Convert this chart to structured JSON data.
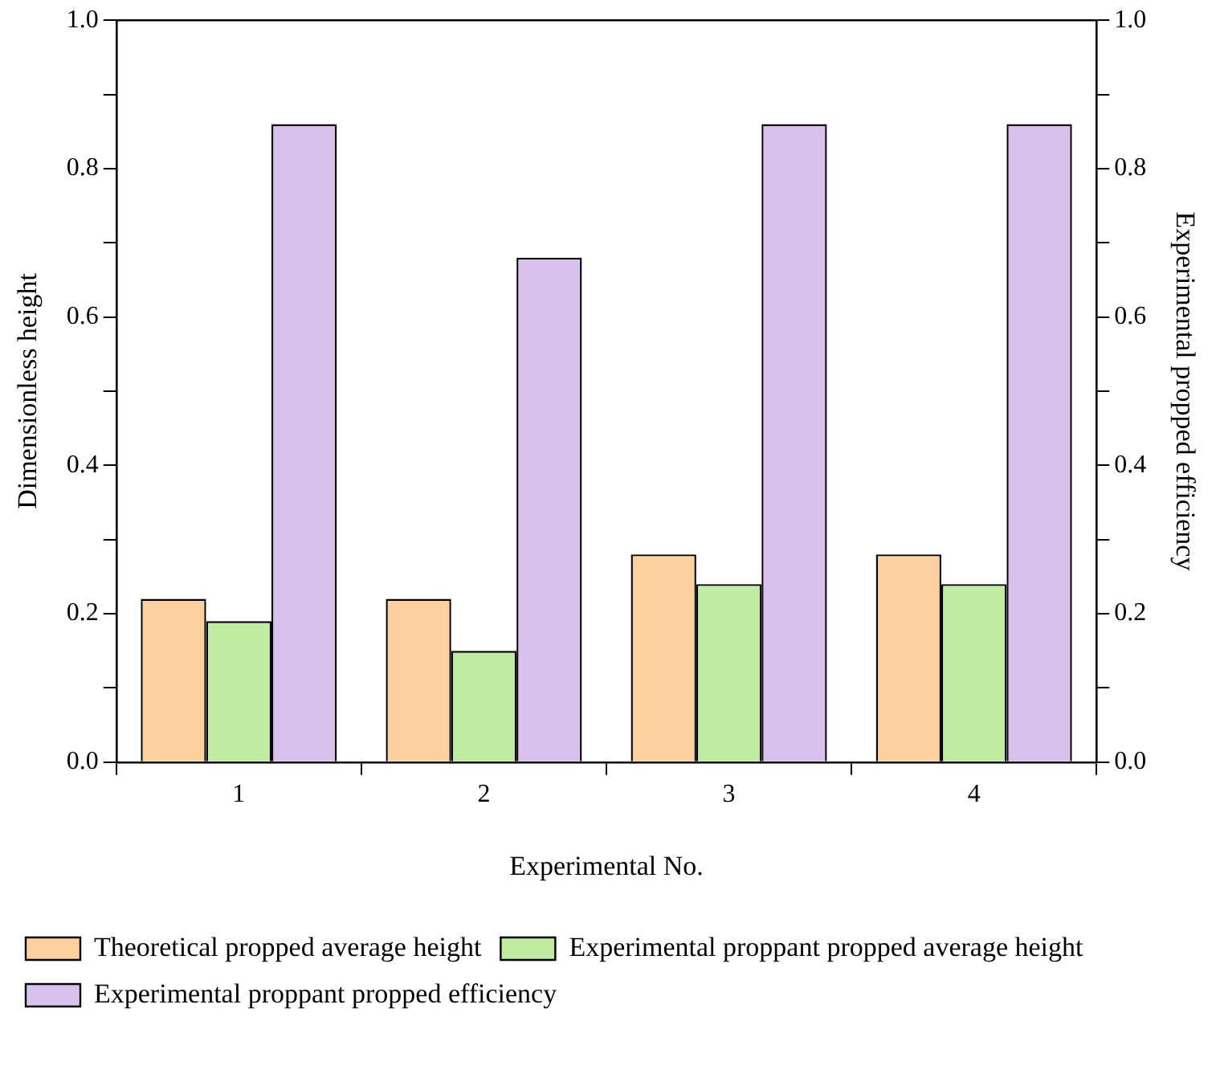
{
  "chart_data": {
    "type": "bar",
    "xlabel": "Experimental No.",
    "ylabel": "Dimensionless height",
    "y2label": "Experimental propped efficiency",
    "categories": [
      "1",
      "2",
      "3",
      "4"
    ],
    "series": [
      {
        "name": "Theoretical propped average height",
        "color": "#fdd09f",
        "values": [
          0.22,
          0.22,
          0.28,
          0.28
        ]
      },
      {
        "name": "Experimental proppant propped average height",
        "color": "#bfeca0",
        "values": [
          0.19,
          0.15,
          0.24,
          0.24
        ]
      },
      {
        "name": "Experimental proppant propped efficiency",
        "color": "#d9c1ee",
        "values": [
          0.86,
          0.68,
          0.86,
          0.86
        ],
        "axis": "y2"
      }
    ],
    "ylim": [
      0,
      1
    ],
    "yticks": [
      {
        "value": 0,
        "label": "0.0"
      },
      {
        "value": 0.1,
        "label": null
      },
      {
        "value": 0.2,
        "label": "0.2"
      },
      {
        "value": 0.3,
        "label": null
      },
      {
        "value": 0.4,
        "label": "0.4"
      },
      {
        "value": 0.5,
        "label": null
      },
      {
        "value": 0.6,
        "label": "0.6"
      },
      {
        "value": 0.7,
        "label": null
      },
      {
        "value": 0.8,
        "label": "0.8"
      },
      {
        "value": 0.9,
        "label": null
      },
      {
        "value": 1,
        "label": "1.0"
      }
    ],
    "y2lim": [
      0,
      1
    ],
    "y2ticks": [
      {
        "value": 0,
        "label": "0.0"
      },
      {
        "value": 0.1,
        "label": null
      },
      {
        "value": 0.2,
        "label": "0.2"
      },
      {
        "value": 0.3,
        "label": null
      },
      {
        "value": 0.4,
        "label": "0.4"
      },
      {
        "value": 0.5,
        "label": null
      },
      {
        "value": 0.6,
        "label": "0.6"
      },
      {
        "value": 0.7,
        "label": null
      },
      {
        "value": 0.8,
        "label": "0.8"
      },
      {
        "value": 0.9,
        "label": null
      },
      {
        "value": 1,
        "label": "1.0"
      }
    ],
    "grid": false,
    "legend": "bottom"
  }
}
